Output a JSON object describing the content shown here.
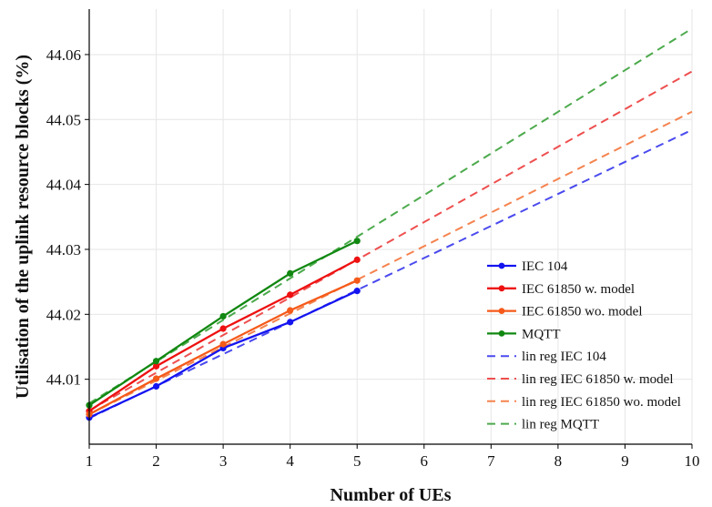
{
  "chart_data": {
    "type": "line",
    "title": "",
    "xlabel": "Number of UEs",
    "ylabel": "Utilisation of the uplink resource blocks (%)",
    "xlim": [
      1,
      10
    ],
    "ylim": [
      44.0,
      44.067
    ],
    "xticks": [
      1,
      2,
      3,
      4,
      5,
      6,
      7,
      8,
      9,
      10
    ],
    "yticks": [
      44.01,
      44.02,
      44.03,
      44.04,
      44.05,
      44.06
    ],
    "ytick_labels": [
      "44.01",
      "44.02",
      "44.03",
      "44.04",
      "44.05",
      "44.06"
    ],
    "grid": true,
    "legend_position": "lower-right",
    "series": [
      {
        "name": "IEC 104",
        "style": "solid",
        "marker": "circle",
        "color": "#1414f0",
        "x": [
          1,
          2,
          3,
          4,
          5
        ],
        "y": [
          44.0041,
          44.0089,
          44.0148,
          44.0188,
          44.0236
        ]
      },
      {
        "name": "IEC 61850 w. model",
        "style": "solid",
        "marker": "circle",
        "color": "#ee1111",
        "x": [
          1,
          2,
          3,
          4,
          5
        ],
        "y": [
          44.0051,
          44.012,
          44.0178,
          44.023,
          44.0284
        ]
      },
      {
        "name": "IEC 61850 wo. model",
        "style": "solid",
        "marker": "circle",
        "color": "#f55a1a",
        "x": [
          1,
          2,
          3,
          4,
          5
        ],
        "y": [
          44.0046,
          44.0101,
          44.0154,
          44.0206,
          44.0252
        ]
      },
      {
        "name": "MQTT",
        "style": "solid",
        "marker": "circle",
        "color": "#118811",
        "x": [
          1,
          2,
          3,
          4,
          5
        ],
        "y": [
          44.006,
          44.0128,
          44.0197,
          44.0263,
          44.0313
        ]
      },
      {
        "name": "lin reg IEC 104",
        "style": "dashed",
        "marker": "none",
        "color": "#4a4aee",
        "x": [
          1,
          10
        ],
        "y": [
          44.004,
          44.0484
        ]
      },
      {
        "name": "lin reg IEC 61850 w. model",
        "style": "dashed",
        "marker": "none",
        "color": "#ee4f4f",
        "x": [
          1,
          10
        ],
        "y": [
          44.0052,
          44.0574
        ]
      },
      {
        "name": "lin reg IEC 61850 wo. model",
        "style": "dashed",
        "marker": "none",
        "color": "#f5834f",
        "x": [
          1,
          10
        ],
        "y": [
          44.0046,
          44.0512
        ]
      },
      {
        "name": "lin reg MQTT",
        "style": "dashed",
        "marker": "none",
        "color": "#4caa4c",
        "x": [
          1,
          10
        ],
        "y": [
          44.0063,
          44.064
        ]
      }
    ]
  }
}
